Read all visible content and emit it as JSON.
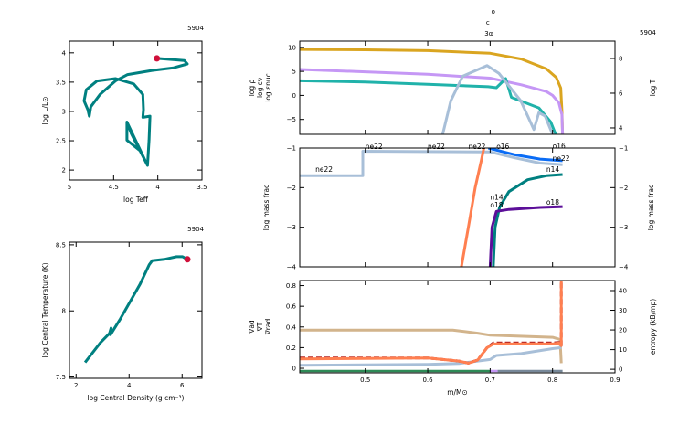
{
  "model_number": "5904",
  "top_markers": {
    "labels": [
      "o",
      "c",
      "3α"
    ],
    "x": 0.705
  },
  "chart_data": [
    {
      "id": "hr",
      "type": "line",
      "model_label": "5904",
      "xlabel": "log Teff",
      "ylabel": "log L/L⊙",
      "xlim": [
        5,
        3.5
      ],
      "ylim": [
        1.83,
        4.2
      ],
      "xticks": [
        5,
        4.5,
        4,
        3.5
      ],
      "xtick_labels": [
        "5",
        "4.5",
        "4",
        "3.5"
      ],
      "yticks": [
        2,
        2.5,
        3,
        3.5,
        4
      ],
      "ytick_labels": [
        "2",
        "2.5",
        "3",
        "3.5",
        "4"
      ],
      "series": [
        {
          "color": "#008080",
          "points": [
            [
              4.349,
              2.82
            ],
            [
              4.349,
              2.51
            ],
            [
              4.2,
              2.33
            ],
            [
              4.117,
              2.08
            ],
            [
              4.349,
              2.82
            ],
            [
              4.3,
              2.62
            ],
            [
              4.117,
              2.08
            ],
            [
              4.099,
              2.51
            ],
            [
              4.089,
              2.92
            ],
            [
              4.169,
              2.9
            ],
            [
              4.162,
              3.03
            ],
            [
              4.169,
              3.29
            ],
            [
              4.273,
              3.47
            ],
            [
              4.48,
              3.56
            ],
            [
              4.688,
              3.52
            ],
            [
              4.81,
              3.37
            ],
            [
              4.834,
              3.18
            ],
            [
              4.792,
              3.03
            ],
            [
              4.775,
              2.92
            ],
            [
              4.758,
              3.08
            ],
            [
              4.654,
              3.29
            ],
            [
              4.48,
              3.52
            ],
            [
              4.342,
              3.63
            ],
            [
              4.065,
              3.7
            ],
            [
              3.822,
              3.745
            ],
            [
              3.666,
              3.81
            ],
            [
              3.7,
              3.87
            ],
            [
              3.96,
              3.9
            ],
            [
              4.01,
              3.905
            ]
          ]
        }
      ],
      "current_point": {
        "x": 4.01,
        "y": 3.905,
        "color": "#d0103a"
      }
    },
    {
      "id": "center",
      "type": "line",
      "model_label": "5904",
      "xlabel": "log Central Density (g cm⁻³)",
      "ylabel": "log Central Temperature (K)",
      "xlim": [
        1.75,
        6.75
      ],
      "ylim": [
        7.49,
        8.52
      ],
      "xticks": [
        2,
        4,
        6
      ],
      "xtick_labels": [
        "2",
        "4",
        "6"
      ],
      "yticks": [
        7.5,
        8,
        8.5
      ],
      "ytick_labels": [
        "7.5",
        "8",
        "8.5"
      ],
      "series": [
        {
          "color": "#008080",
          "points": [
            [
              2.34,
              7.61
            ],
            [
              2.92,
              7.76
            ],
            [
              3.26,
              7.83
            ],
            [
              3.32,
              7.87
            ],
            [
              3.3,
              7.82
            ],
            [
              3.67,
              7.94
            ],
            [
              4.41,
              8.2
            ],
            [
              4.76,
              8.35
            ],
            [
              4.87,
              8.38
            ],
            [
              5.33,
              8.39
            ],
            [
              5.79,
              8.41
            ],
            [
              6.02,
              8.41
            ],
            [
              6.2,
              8.39
            ]
          ]
        }
      ],
      "current_point": {
        "x": 6.2,
        "y": 8.39,
        "color": "#d0103a"
      }
    },
    {
      "id": "profile-top",
      "type": "line",
      "xlim": [
        0.395,
        0.9
      ],
      "ylim": [
        -8.1,
        11.3
      ],
      "yticks": [
        -5,
        0,
        5,
        10
      ],
      "ytick_labels": [
        "−5",
        "0",
        "5",
        "10"
      ],
      "ylim_right": [
        3.63,
        9.0
      ],
      "yticks_right": [
        4,
        6,
        8
      ],
      "ytick_labels_right": [
        "4",
        "6",
        "8"
      ],
      "left_labels": [
        {
          "text": "log ρ",
          "color": "#c597f5"
        },
        {
          "text": "log εν",
          "color": "#20b2aa"
        },
        {
          "text": "log εnuc",
          "color": "#a8bfd8"
        }
      ],
      "right_label": {
        "text": "log T",
        "color": "#daa520"
      },
      "series": [
        {
          "name": "log T",
          "axis": "right",
          "color": "#daa520",
          "points": [
            [
              0.395,
              8.52
            ],
            [
              0.5,
              8.5
            ],
            [
              0.6,
              8.45
            ],
            [
              0.7,
              8.3
            ],
            [
              0.75,
              7.97
            ],
            [
              0.79,
              7.4
            ],
            [
              0.806,
              6.9
            ],
            [
              0.813,
              6.3
            ],
            [
              0.815,
              5.0
            ],
            [
              0.816,
              3.63
            ]
          ]
        },
        {
          "name": "log ρ",
          "axis": "left",
          "color": "#c597f5",
          "points": [
            [
              0.395,
              5.4
            ],
            [
              0.5,
              4.9
            ],
            [
              0.6,
              4.4
            ],
            [
              0.7,
              3.6
            ],
            [
              0.75,
              2.2
            ],
            [
              0.79,
              0.8
            ],
            [
              0.8,
              0
            ],
            [
              0.81,
              -1.5
            ],
            [
              0.815,
              -4
            ],
            [
              0.816,
              -8.1
            ]
          ]
        },
        {
          "name": "log εν",
          "axis": "left",
          "color": "#20b2aa",
          "points": [
            [
              0.395,
              3.05
            ],
            [
              0.5,
              2.8
            ],
            [
              0.6,
              2.3
            ],
            [
              0.697,
              1.8
            ],
            [
              0.71,
              1.6
            ],
            [
              0.725,
              3.5
            ],
            [
              0.734,
              -0.4
            ],
            [
              0.778,
              -2.6
            ],
            [
              0.797,
              -5.5
            ],
            [
              0.805,
              -8.1
            ]
          ]
        },
        {
          "name": "log εnuc",
          "axis": "left",
          "color": "#a8bfd8",
          "points": [
            [
              0.624,
              -8.1
            ],
            [
              0.637,
              -1.1
            ],
            [
              0.656,
              4.0
            ],
            [
              0.695,
              6.2
            ],
            [
              0.714,
              4.6
            ],
            [
              0.749,
              -1.1
            ],
            [
              0.77,
              -7.1
            ],
            [
              0.778,
              -3.6
            ],
            [
              0.788,
              -4.3
            ],
            [
              0.8,
              -8.1
            ]
          ]
        }
      ]
    },
    {
      "id": "profile-abund",
      "type": "line",
      "xlim": [
        0.395,
        0.9
      ],
      "ylim": [
        -4,
        -1
      ],
      "yticks": [
        -4,
        -3,
        -2,
        -1
      ],
      "ytick_labels": [
        "−4",
        "−3",
        "−2",
        "−1"
      ],
      "ylabel": "log mass frac",
      "ylabel_right": "log mass frac",
      "series": [
        {
          "name": "ne22",
          "color": "#a8bfd8",
          "points": [
            [
              0.395,
              -1.7
            ],
            [
              0.496,
              -1.7
            ],
            [
              0.496,
              -1.08
            ],
            [
              0.7,
              -1.1
            ],
            [
              0.74,
              -1.25
            ],
            [
              0.78,
              -1.38
            ],
            [
              0.816,
              -1.42
            ]
          ],
          "labels": [
            [
              0.42,
              -1.6
            ],
            [
              0.5,
              -1.02
            ],
            [
              0.6,
              -1.02
            ],
            [
              0.665,
              -1.02
            ],
            [
              0.8,
              -1.32
            ]
          ]
        },
        {
          "name": "o16",
          "color": "#0a6cf5",
          "points": [
            [
              0.697,
              -1.0
            ],
            [
              0.74,
              -1.17
            ],
            [
              0.78,
              -1.28
            ],
            [
              0.816,
              -1.32
            ]
          ],
          "labels": [
            [
              0.71,
              -1.02
            ],
            [
              0.8,
              -1.22
            ]
          ]
        },
        {
          "name": "n14",
          "color": "#008080",
          "points": [
            [
              0.705,
              -4
            ],
            [
              0.708,
              -3
            ],
            [
              0.715,
              -2.5
            ],
            [
              0.73,
              -2.1
            ],
            [
              0.76,
              -1.8
            ],
            [
              0.79,
              -1.7
            ],
            [
              0.816,
              -1.67
            ]
          ],
          "labels": [
            [
              0.7,
              -2.3
            ],
            [
              0.79,
              -1.6
            ]
          ]
        },
        {
          "name": "o18",
          "color": "#5c0f99",
          "points": [
            [
              0.7,
              -4
            ],
            [
              0.703,
              -3
            ],
            [
              0.71,
              -2.6
            ],
            [
              0.73,
              -2.55
            ],
            [
              0.78,
              -2.5
            ],
            [
              0.816,
              -2.48
            ]
          ],
          "labels": [
            [
              0.7,
              -2.5
            ],
            [
              0.79,
              -2.43
            ]
          ]
        },
        {
          "color": "#ff7f50",
          "points": [
            [
              0.654,
              -4
            ],
            [
              0.665,
              -3
            ],
            [
              0.676,
              -2
            ],
            [
              0.686,
              -1.3
            ],
            [
              0.69,
              -1.0
            ]
          ]
        }
      ]
    },
    {
      "id": "profile-grad",
      "type": "line",
      "xlim": [
        0.395,
        0.9
      ],
      "ylim": [
        -0.044,
        0.849
      ],
      "xticks": [
        0.5,
        0.6,
        0.7,
        0.8,
        0.9
      ],
      "xtick_labels": [
        "0.5",
        "0.6",
        "0.7",
        "0.8",
        "0.9"
      ],
      "xlabel": "m/M⊙",
      "yticks": [
        0,
        0.2,
        0.4,
        0.6,
        0.8
      ],
      "ytick_labels": [
        "0",
        "0.2",
        "0.4",
        "0.6",
        "0.8"
      ],
      "ylim_right": [
        -1.8,
        45.1
      ],
      "yticks_right": [
        0,
        10,
        20,
        30,
        40
      ],
      "ytick_labels_right": [
        "0",
        "10",
        "20",
        "30",
        "40"
      ],
      "left_labels": [
        {
          "text": "∇ad",
          "color": "#d2b48c"
        },
        {
          "text": "∇T",
          "color": "#b22222"
        },
        {
          "text": "∇rad",
          "color": "#ff7f50"
        }
      ],
      "right_label": {
        "text": "entropy (kB/mp)",
        "color": "#000000"
      },
      "series": [
        {
          "name": "∇ad",
          "axis": "left",
          "color": "#d2b48c",
          "points": [
            [
              0.395,
              0.37
            ],
            [
              0.64,
              0.37
            ],
            [
              0.68,
              0.34
            ],
            [
              0.7,
              0.32
            ],
            [
              0.8,
              0.3
            ],
            [
              0.812,
              0.28
            ],
            [
              0.814,
              0.05
            ]
          ]
        },
        {
          "name": "entropy",
          "axis": "right",
          "color": "#a8bfd8",
          "points": [
            [
              0.395,
              2
            ],
            [
              0.6,
              2.5
            ],
            [
              0.65,
              3
            ],
            [
              0.7,
              5
            ],
            [
              0.71,
              7
            ],
            [
              0.75,
              8
            ],
            [
              0.8,
              10.5
            ],
            [
              0.814,
              11
            ]
          ]
        },
        {
          "name": "∇T",
          "axis": "left",
          "color": "#b22222",
          "dashed": true,
          "points": [
            [
              0.395,
              0.1
            ],
            [
              0.6,
              0.1
            ],
            [
              0.65,
              0.07
            ],
            [
              0.665,
              0.05
            ],
            [
              0.68,
              0.08
            ],
            [
              0.695,
              0.2
            ],
            [
              0.705,
              0.245
            ],
            [
              0.8,
              0.245
            ],
            [
              0.81,
              0.25
            ],
            [
              0.814,
              0.22
            ],
            [
              0.814,
              0.85
            ]
          ]
        },
        {
          "name": "∇rad",
          "axis": "left",
          "color": "#ff7f50",
          "points": [
            [
              0.395,
              0.09
            ],
            [
              0.6,
              0.1
            ],
            [
              0.65,
              0.07
            ],
            [
              0.665,
              0.05
            ],
            [
              0.68,
              0.08
            ],
            [
              0.695,
              0.2
            ],
            [
              0.705,
              0.235
            ],
            [
              0.8,
              0.235
            ],
            [
              0.81,
              0.245
            ],
            [
              0.814,
              0.22
            ],
            [
              0.814,
              0.85
            ]
          ]
        }
      ],
      "mixing_strip": [
        {
          "from": 0.395,
          "to": 0.7,
          "color": "#2e8b57"
        },
        {
          "from": 0.7,
          "to": 0.712,
          "color": "#c597f5"
        },
        {
          "from": 0.712,
          "to": 0.816,
          "color": "#778899"
        }
      ]
    }
  ]
}
